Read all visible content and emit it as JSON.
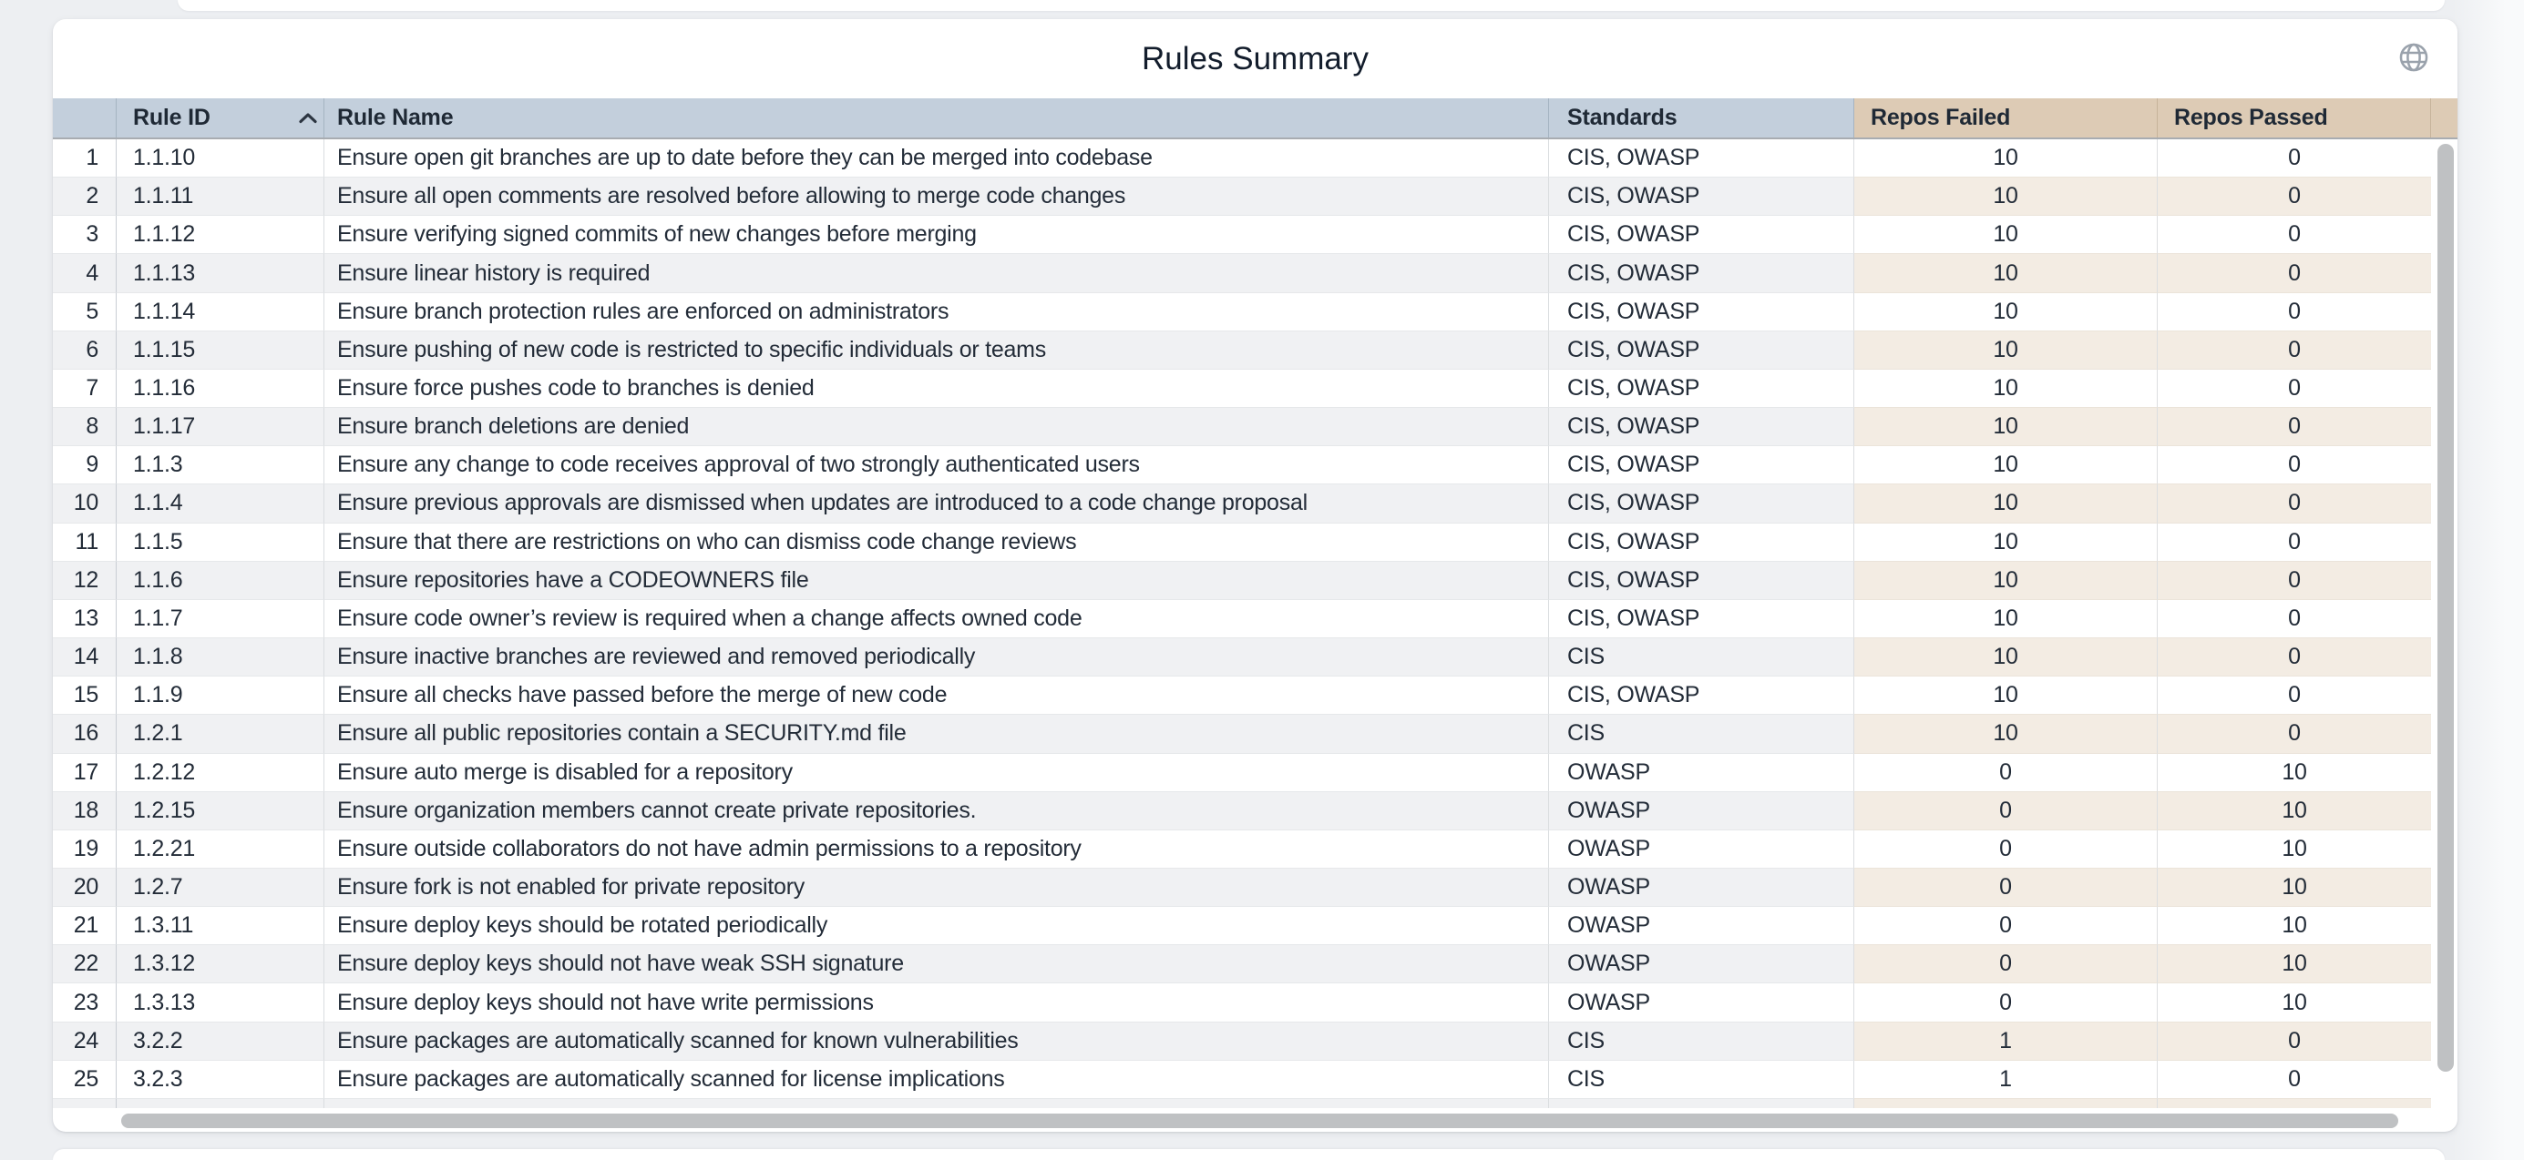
{
  "card": {
    "title": "Rules Summary",
    "globe_icon": "globe-icon"
  },
  "table": {
    "columns": [
      {
        "label": ""
      },
      {
        "label": "Rule ID",
        "sorted": "ascending"
      },
      {
        "label": "Rule Name"
      },
      {
        "label": "Standards"
      },
      {
        "label": "Repos Failed"
      },
      {
        "label": "Repos Passed"
      }
    ],
    "rows": [
      {
        "num": "1",
        "rule_id": "1.1.10",
        "rule_name": "Ensure open git branches are up to date before they can be merged into codebase",
        "standards": "CIS, OWASP",
        "repos_failed": "10",
        "repos_passed": "0"
      },
      {
        "num": "2",
        "rule_id": "1.1.11",
        "rule_name": "Ensure all open comments are resolved before allowing to merge code changes",
        "standards": "CIS, OWASP",
        "repos_failed": "10",
        "repos_passed": "0"
      },
      {
        "num": "3",
        "rule_id": "1.1.12",
        "rule_name": "Ensure verifying signed commits of new changes before merging",
        "standards": "CIS, OWASP",
        "repos_failed": "10",
        "repos_passed": "0"
      },
      {
        "num": "4",
        "rule_id": "1.1.13",
        "rule_name": "Ensure linear history is required",
        "standards": "CIS, OWASP",
        "repos_failed": "10",
        "repos_passed": "0"
      },
      {
        "num": "5",
        "rule_id": "1.1.14",
        "rule_name": "Ensure branch protection rules are enforced on administrators",
        "standards": "CIS, OWASP",
        "repos_failed": "10",
        "repos_passed": "0"
      },
      {
        "num": "6",
        "rule_id": "1.1.15",
        "rule_name": "Ensure pushing of new code is restricted to specific individuals or teams",
        "standards": "CIS, OWASP",
        "repos_failed": "10",
        "repos_passed": "0"
      },
      {
        "num": "7",
        "rule_id": "1.1.16",
        "rule_name": "Ensure force pushes code to branches is denied",
        "standards": "CIS, OWASP",
        "repos_failed": "10",
        "repos_passed": "0"
      },
      {
        "num": "8",
        "rule_id": "1.1.17",
        "rule_name": "Ensure branch deletions are denied",
        "standards": "CIS, OWASP",
        "repos_failed": "10",
        "repos_passed": "0"
      },
      {
        "num": "9",
        "rule_id": "1.1.3",
        "rule_name": "Ensure any change to code receives approval of two strongly authenticated users",
        "standards": "CIS, OWASP",
        "repos_failed": "10",
        "repos_passed": "0"
      },
      {
        "num": "10",
        "rule_id": "1.1.4",
        "rule_name": "Ensure previous approvals are dismissed when updates are introduced to a code change proposal",
        "standards": "CIS, OWASP",
        "repos_failed": "10",
        "repos_passed": "0"
      },
      {
        "num": "11",
        "rule_id": "1.1.5",
        "rule_name": "Ensure that there are restrictions on who can dismiss code change reviews",
        "standards": "CIS, OWASP",
        "repos_failed": "10",
        "repos_passed": "0"
      },
      {
        "num": "12",
        "rule_id": "1.1.6",
        "rule_name": "Ensure repositories have a CODEOWNERS file",
        "standards": "CIS, OWASP",
        "repos_failed": "10",
        "repos_passed": "0"
      },
      {
        "num": "13",
        "rule_id": "1.1.7",
        "rule_name": "Ensure code owner’s review is required when a change affects owned code",
        "standards": "CIS, OWASP",
        "repos_failed": "10",
        "repos_passed": "0"
      },
      {
        "num": "14",
        "rule_id": "1.1.8",
        "rule_name": "Ensure inactive branches are reviewed and removed periodically",
        "standards": "CIS",
        "repos_failed": "10",
        "repos_passed": "0"
      },
      {
        "num": "15",
        "rule_id": "1.1.9",
        "rule_name": "Ensure all checks have passed before the merge of new code",
        "standards": "CIS, OWASP",
        "repos_failed": "10",
        "repos_passed": "0"
      },
      {
        "num": "16",
        "rule_id": "1.2.1",
        "rule_name": "Ensure all public repositories contain a SECURITY.md file",
        "standards": "CIS",
        "repos_failed": "10",
        "repos_passed": "0"
      },
      {
        "num": "17",
        "rule_id": "1.2.12",
        "rule_name": "Ensure auto merge is disabled for a repository",
        "standards": "OWASP",
        "repos_failed": "0",
        "repos_passed": "10"
      },
      {
        "num": "18",
        "rule_id": "1.2.15",
        "rule_name": "Ensure organization members cannot create private repositories.",
        "standards": "OWASP",
        "repos_failed": "0",
        "repos_passed": "10"
      },
      {
        "num": "19",
        "rule_id": "1.2.21",
        "rule_name": "Ensure outside collaborators do not have admin permissions to a repository",
        "standards": "OWASP",
        "repos_failed": "0",
        "repos_passed": "10"
      },
      {
        "num": "20",
        "rule_id": "1.2.7",
        "rule_name": "Ensure fork is not enabled for private repository",
        "standards": "OWASP",
        "repos_failed": "0",
        "repos_passed": "10"
      },
      {
        "num": "21",
        "rule_id": "1.3.11",
        "rule_name": "Ensure deploy keys should be rotated periodically",
        "standards": "OWASP",
        "repos_failed": "0",
        "repos_passed": "10"
      },
      {
        "num": "22",
        "rule_id": "1.3.12",
        "rule_name": "Ensure deploy keys should not have weak SSH signature",
        "standards": "OWASP",
        "repos_failed": "0",
        "repos_passed": "10"
      },
      {
        "num": "23",
        "rule_id": "1.3.13",
        "rule_name": "Ensure deploy keys should not have write permissions",
        "standards": "OWASP",
        "repos_failed": "0",
        "repos_passed": "10"
      },
      {
        "num": "24",
        "rule_id": "3.2.2",
        "rule_name": "Ensure packages are automatically scanned for known vulnerabilities",
        "standards": "CIS",
        "repos_failed": "1",
        "repos_passed": "0"
      },
      {
        "num": "25",
        "rule_id": "3.2.3",
        "rule_name": "Ensure packages are automatically scanned for license implications",
        "standards": "CIS",
        "repos_failed": "1",
        "repos_passed": "0"
      }
    ],
    "partial_row_visible": true
  },
  "colors": {
    "header_blue": "#c3cfdc",
    "header_tan": "#ddcbb5",
    "stripe_gray": "#f0f1f3",
    "stripe_tan": "#f3ece3",
    "scrollbar": "#bfc1c3"
  }
}
